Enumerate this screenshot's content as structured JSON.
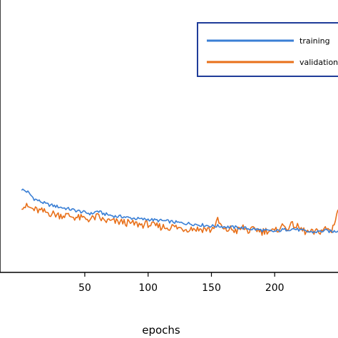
{
  "chart_data": {
    "type": "line",
    "title": "",
    "xlabel": "epochs",
    "ylabel": "",
    "xlim": [
      -17,
      250
    ],
    "ylim": [
      0,
      100
    ],
    "xticks": [
      50,
      100,
      150,
      200
    ],
    "grid": false,
    "legend": {
      "placement": "top-right"
    },
    "series": [
      {
        "name": "training",
        "color": "#3a7fd5",
        "x": [
          0,
          5,
          10,
          15,
          20,
          25,
          30,
          35,
          40,
          45,
          50,
          55,
          60,
          65,
          70,
          75,
          80,
          85,
          90,
          95,
          100,
          105,
          110,
          115,
          120,
          125,
          130,
          135,
          140,
          145,
          150,
          155,
          160,
          165,
          170,
          175,
          180,
          185,
          190,
          195,
          200,
          205,
          210,
          215,
          220,
          225,
          230,
          235,
          240,
          245,
          250
        ],
        "y": [
          30.5,
          29.5,
          27.0,
          26.0,
          25.0,
          24.5,
          24.0,
          23.5,
          23.0,
          22.5,
          22.0,
          21.5,
          22.5,
          21.5,
          21.0,
          20.5,
          20.5,
          20.0,
          19.8,
          19.5,
          19.5,
          19.2,
          19.0,
          18.8,
          18.5,
          18.2,
          18.0,
          17.8,
          17.5,
          17.3,
          17.0,
          17.0,
          16.8,
          16.6,
          16.5,
          16.3,
          16.0,
          15.8,
          15.5,
          15.2,
          15.0,
          15.5,
          15.8,
          16.0,
          15.5,
          15.0,
          14.8,
          15.0,
          15.3,
          15.0,
          15.2
        ]
      },
      {
        "name": "validation",
        "color": "#e8701a",
        "x": [
          0,
          5,
          10,
          15,
          20,
          25,
          30,
          35,
          40,
          45,
          50,
          55,
          60,
          65,
          70,
          75,
          80,
          85,
          90,
          95,
          100,
          105,
          110,
          115,
          120,
          125,
          130,
          135,
          140,
          145,
          150,
          155,
          160,
          165,
          170,
          175,
          180,
          185,
          190,
          195,
          200,
          205,
          210,
          215,
          220,
          225,
          230,
          235,
          240,
          245,
          250
        ],
        "y": [
          24.5,
          24.0,
          23.0,
          22.5,
          22.0,
          21.5,
          21.0,
          21.0,
          20.5,
          20.0,
          19.8,
          19.5,
          20.5,
          19.0,
          18.8,
          18.5,
          18.5,
          18.0,
          17.8,
          17.5,
          17.8,
          17.0,
          16.8,
          16.5,
          16.8,
          16.2,
          16.0,
          16.2,
          15.8,
          16.0,
          15.5,
          19.0,
          15.3,
          16.0,
          15.2,
          16.5,
          15.0,
          16.0,
          15.0,
          15.5,
          14.8,
          17.0,
          16.5,
          17.5,
          16.0,
          14.8,
          14.5,
          15.0,
          16.0,
          15.2,
          23.0
        ]
      }
    ]
  }
}
